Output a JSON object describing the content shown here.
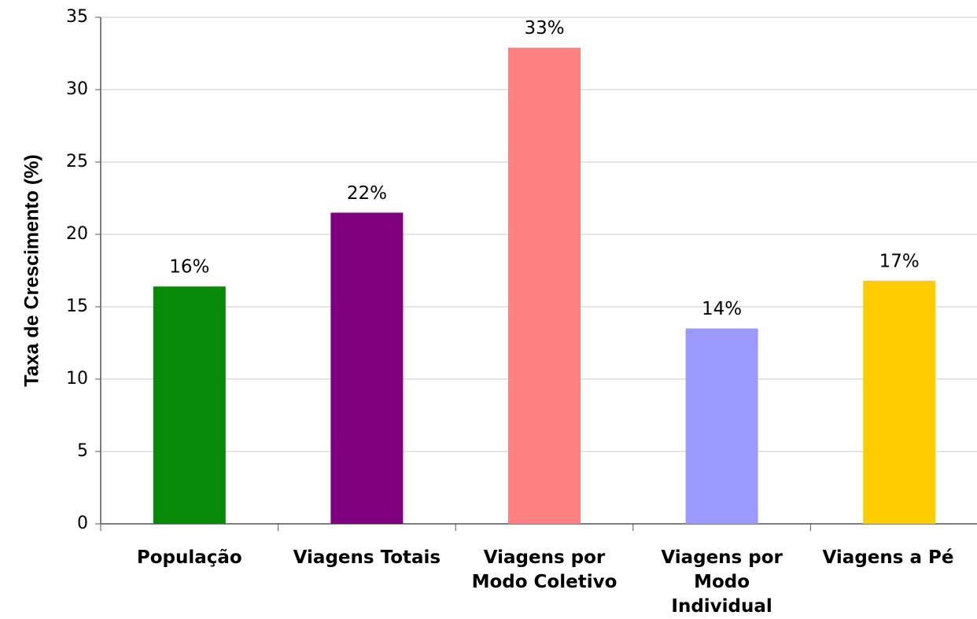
{
  "chart_data": {
    "type": "bar",
    "y_axis_label": "Taxa de Crescimento (%)",
    "categories": [
      "População",
      "Viagens Totais",
      "Viagens por\nModo Coletivo",
      "Viagens por\nModo\nIndividual",
      "Viagens a Pé"
    ],
    "values": [
      16.4,
      21.5,
      32.9,
      13.5,
      16.8
    ],
    "value_labels": [
      "16%",
      "22%",
      "33%",
      "14%",
      "17%"
    ],
    "colors": [
      "#078a07",
      "#7f007f",
      "#ff8080",
      "#9999ff",
      "#ffcc00"
    ],
    "ylim": [
      0,
      35
    ],
    "yticks": [
      0,
      5,
      10,
      15,
      20,
      25,
      30,
      35
    ],
    "grid": true
  }
}
